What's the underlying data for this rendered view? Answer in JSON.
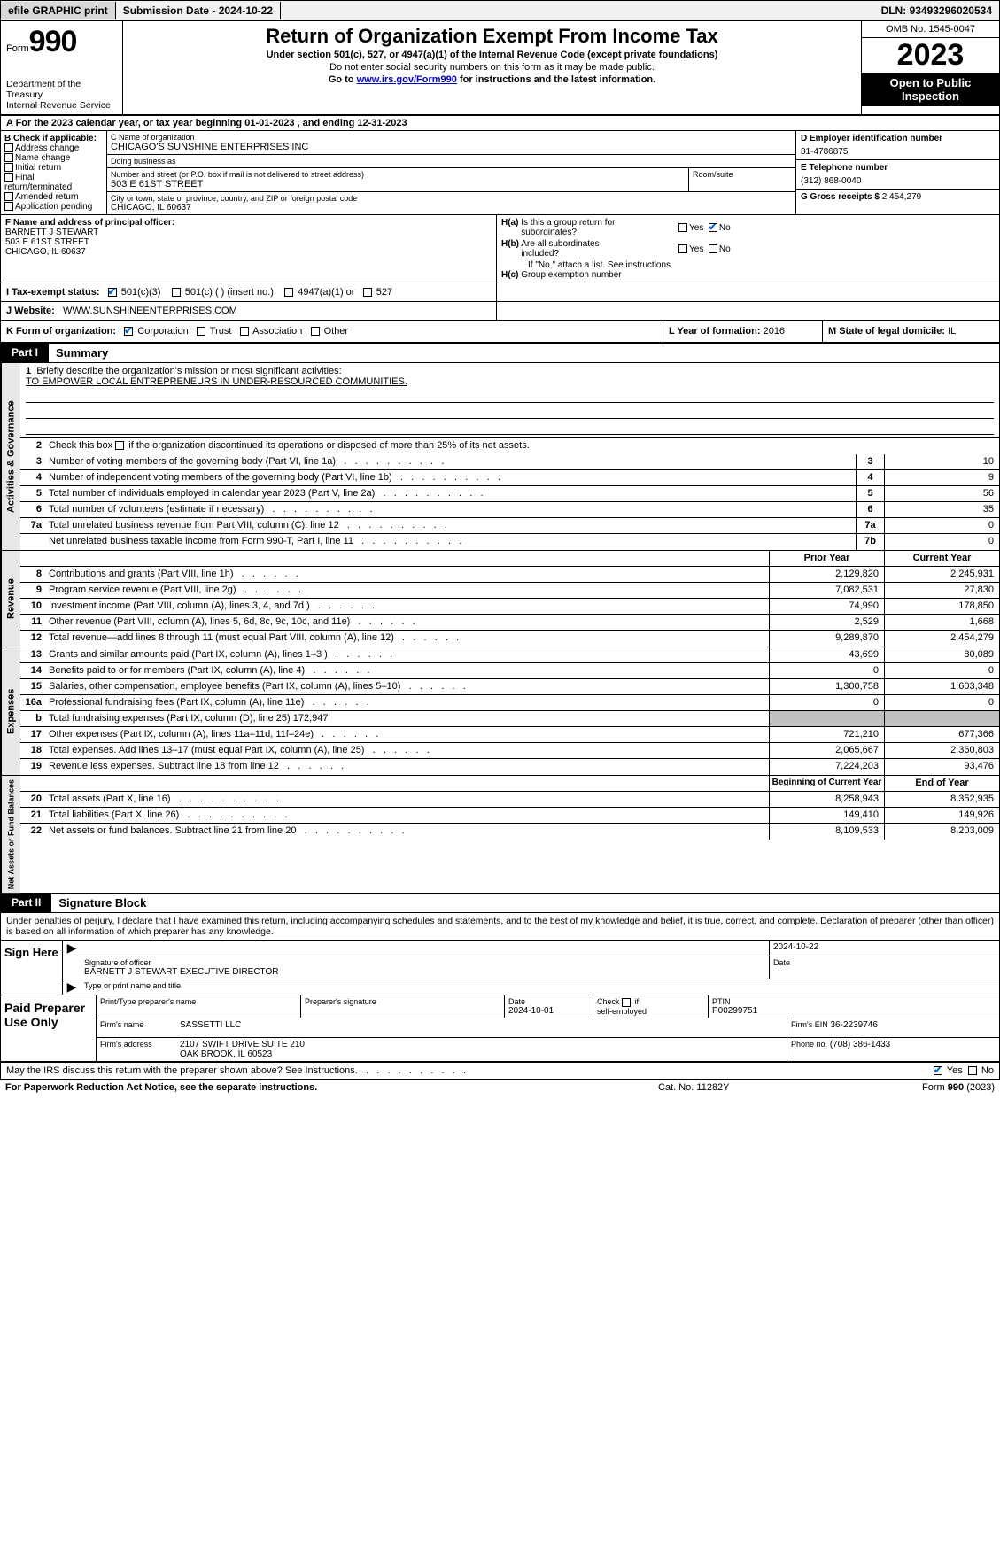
{
  "topbar": {
    "efile": "efile GRAPHIC print",
    "submission_label": "Submission Date - ",
    "submission_date": "2024-10-22",
    "dln_label": "DLN: ",
    "dln": "93493296020534"
  },
  "header": {
    "form_word": "Form",
    "form_num": "990",
    "dept": "Department of the Treasury\nInternal Revenue Service",
    "title": "Return of Organization Exempt From Income Tax",
    "sub1": "Under section 501(c), 527, or 4947(a)(1) of the Internal Revenue Code (except private foundations)",
    "sub2": "Do not enter social security numbers on this form as it may be made public.",
    "sub3_pre": "Go to ",
    "sub3_link": "www.irs.gov/Form990",
    "sub3_post": " for instructions and the latest information.",
    "omb": "OMB No. 1545-0047",
    "year": "2023",
    "inspect": "Open to Public Inspection"
  },
  "rowA": {
    "text_pre": "A For the 2023 calendar year, or tax year beginning ",
    "begin": "01-01-2023",
    "mid": " , and ending ",
    "end": "12-31-2023"
  },
  "boxB": {
    "label": "B Check if applicable:",
    "opts": [
      "Address change",
      "Name change",
      "Initial return",
      "Final return/terminated",
      "Amended return",
      "Application pending"
    ]
  },
  "boxC": {
    "name_label": "C Name of organization",
    "name": "CHICAGO'S SUNSHINE ENTERPRISES INC",
    "dba_label": "Doing business as",
    "dba": "",
    "addr_label": "Number and street (or P.O. box if mail is not delivered to street address)",
    "room_label": "Room/suite",
    "addr": "503 E 61ST STREET",
    "city_label": "City or town, state or province, country, and ZIP or foreign postal code",
    "city": "CHICAGO, IL  60637"
  },
  "boxD": {
    "label": "D Employer identification number",
    "val": "81-4786875"
  },
  "boxE": {
    "label": "E Telephone number",
    "val": "(312) 868-0040"
  },
  "boxG": {
    "label": "G Gross receipts $",
    "val": "2,454,279"
  },
  "boxF": {
    "label": "F  Name and address of principal officer:",
    "name": "BARNETT J STEWART",
    "addr1": "503 E 61ST STREET",
    "addr2": "CHICAGO, IL  60637"
  },
  "boxH": {
    "ha_label": "H(a)  Is this a group return for subordinates?",
    "ha_yes": false,
    "ha_no": true,
    "hb_label": "H(b)  Are all subordinates included?",
    "hb_yes": false,
    "hb_no": false,
    "hb_note": "If \"No,\" attach a list. See instructions.",
    "hc_label": "H(c)  Group exemption number",
    "hc_val": ""
  },
  "rowI": {
    "label": "I     Tax-exempt status:",
    "o1": "501(c)(3)",
    "o1c": true,
    "o2": "501(c) (   ) (insert no.)",
    "o3": "4947(a)(1) or",
    "o4": "527"
  },
  "rowJ": {
    "label": "J    Website:",
    "val": "WWW.SUNSHINEENTERPRISES.COM"
  },
  "rowK": {
    "label": "K Form of organization:",
    "corp": true,
    "corp_l": "Corporation",
    "trust": false,
    "trust_l": "Trust",
    "assoc": false,
    "assoc_l": "Association",
    "other": false,
    "other_l": "Other",
    "L_label": "L Year of formation:",
    "L_val": "2016",
    "M_label": "M State of legal domicile:",
    "M_val": "IL"
  },
  "part1": {
    "tag": "Part I",
    "title": "Summary",
    "vlabels": [
      "Activities & Governance",
      "Revenue",
      "Expenses",
      "Net Assets or Fund Balances"
    ],
    "l1_label": "Briefly describe the organization's mission or most significant activities:",
    "l1_val": "TO EMPOWER LOCAL ENTREPRENEURS IN UNDER-RESOURCED COMMUNITIES.",
    "l2": "Check this box      if the organization discontinued its operations or disposed of more than 25% of its net assets.",
    "rows_gov": [
      {
        "n": "3",
        "d": "Number of voting members of the governing body (Part VI, line 1a)",
        "box": "3",
        "v": "10"
      },
      {
        "n": "4",
        "d": "Number of independent voting members of the governing body (Part VI, line 1b)",
        "box": "4",
        "v": "9"
      },
      {
        "n": "5",
        "d": "Total number of individuals employed in calendar year 2023 (Part V, line 2a)",
        "box": "5",
        "v": "56"
      },
      {
        "n": "6",
        "d": "Total number of volunteers (estimate if necessary)",
        "box": "6",
        "v": "35"
      },
      {
        "n": "7a",
        "d": "Total unrelated business revenue from Part VIII, column (C), line 12",
        "box": "7a",
        "v": "0"
      },
      {
        "n": "",
        "d": "Net unrelated business taxable income from Form 990-T, Part I, line 11",
        "box": "7b",
        "v": "0"
      }
    ],
    "hdr_prior": "Prior Year",
    "hdr_curr": "Current Year",
    "rows_rev": [
      {
        "n": "8",
        "d": "Contributions and grants (Part VIII, line 1h)",
        "p": "2,129,820",
        "c": "2,245,931"
      },
      {
        "n": "9",
        "d": "Program service revenue (Part VIII, line 2g)",
        "p": "7,082,531",
        "c": "27,830"
      },
      {
        "n": "10",
        "d": "Investment income (Part VIII, column (A), lines 3, 4, and 7d )",
        "p": "74,990",
        "c": "178,850"
      },
      {
        "n": "11",
        "d": "Other revenue (Part VIII, column (A), lines 5, 6d, 8c, 9c, 10c, and 11e)",
        "p": "2,529",
        "c": "1,668"
      },
      {
        "n": "12",
        "d": "Total revenue—add lines 8 through 11 (must equal Part VIII, column (A), line 12)",
        "p": "9,289,870",
        "c": "2,454,279"
      }
    ],
    "rows_exp": [
      {
        "n": "13",
        "d": "Grants and similar amounts paid (Part IX, column (A), lines 1–3 )",
        "p": "43,699",
        "c": "80,089"
      },
      {
        "n": "14",
        "d": "Benefits paid to or for members (Part IX, column (A), line 4)",
        "p": "0",
        "c": "0"
      },
      {
        "n": "15",
        "d": "Salaries, other compensation, employee benefits (Part IX, column (A), lines 5–10)",
        "p": "1,300,758",
        "c": "1,603,348"
      },
      {
        "n": "16a",
        "d": "Professional fundraising fees (Part IX, column (A), line 11e)",
        "p": "0",
        "c": "0"
      },
      {
        "n": "b",
        "d": "Total fundraising expenses (Part IX, column (D), line 25) 172,947",
        "p": "",
        "c": "",
        "shade": true
      },
      {
        "n": "17",
        "d": "Other expenses (Part IX, column (A), lines 11a–11d, 11f–24e)",
        "p": "721,210",
        "c": "677,366"
      },
      {
        "n": "18",
        "d": "Total expenses. Add lines 13–17 (must equal Part IX, column (A), line 25)",
        "p": "2,065,667",
        "c": "2,360,803"
      },
      {
        "n": "19",
        "d": "Revenue less expenses. Subtract line 18 from line 12",
        "p": "7,224,203",
        "c": "93,476"
      }
    ],
    "hdr_boy": "Beginning of Current Year",
    "hdr_eoy": "End of Year",
    "rows_net": [
      {
        "n": "20",
        "d": "Total assets (Part X, line 16)",
        "p": "8,258,943",
        "c": "8,352,935"
      },
      {
        "n": "21",
        "d": "Total liabilities (Part X, line 26)",
        "p": "149,410",
        "c": "149,926"
      },
      {
        "n": "22",
        "d": "Net assets or fund balances. Subtract line 21 from line 20",
        "p": "8,109,533",
        "c": "8,203,009"
      }
    ]
  },
  "part2": {
    "tag": "Part II",
    "title": "Signature Block",
    "decl": "Under penalties of perjury, I declare that I have examined this return, including accompanying schedules and statements, and to the best of my knowledge and belief, it is true, correct, and complete. Declaration of preparer (other than officer) is based on all information of which preparer has any knowledge."
  },
  "sign": {
    "label": "Sign Here",
    "sig_lbl": "Signature of officer",
    "date": "2024-10-22",
    "date_lbl": "Date",
    "name": "BARNETT J STEWART  EXECUTIVE DIRECTOR",
    "name_lbl": "Type or print name and title"
  },
  "prep": {
    "label": "Paid Preparer Use Only",
    "r1": {
      "c1_lbl": "Print/Type preparer's name",
      "c1": "",
      "c2_lbl": "Preparer's signature",
      "c2": "",
      "c3_lbl": "Date",
      "c3": "2024-10-01",
      "c4_lbl": "Check        if self-employed",
      "c5_lbl": "PTIN",
      "c5": "P00299751"
    },
    "r2": {
      "lbl": "Firm's name",
      "val": "SASSETTI LLC",
      "ein_lbl": "Firm's EIN",
      "ein": "36-2239746"
    },
    "r3": {
      "lbl": "Firm's address",
      "val1": "2107 SWIFT DRIVE SUITE 210",
      "val2": "OAK BROOK, IL  60523",
      "ph_lbl": "Phone no.",
      "ph": "(708) 386-1433"
    }
  },
  "may": {
    "text": "May the IRS discuss this return with the preparer shown above? See Instructions.",
    "yes": true,
    "no": false
  },
  "footer": {
    "l": "For Paperwork Reduction Act Notice, see the separate instructions.",
    "m": "Cat. No. 11282Y",
    "r_pre": "Form ",
    "r_b": "990",
    "r_post": " (2023)"
  }
}
